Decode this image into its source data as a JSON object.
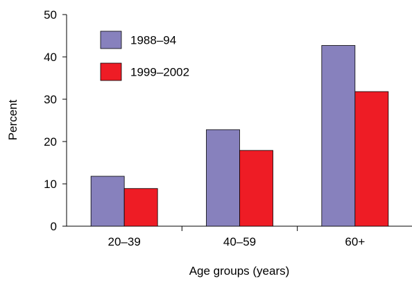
{
  "chart_data": {
    "type": "bar",
    "title": "",
    "xlabel": "Age groups (years)",
    "ylabel": "Percent",
    "categories": [
      "20–39",
      "40–59",
      "60+"
    ],
    "series": [
      {
        "name": "1988–94",
        "values": [
          11.8,
          22.8,
          42.7
        ],
        "color": "#8781BD"
      },
      {
        "name": "1999–2002",
        "values": [
          8.9,
          17.9,
          31.8
        ],
        "color": "#EE1C25"
      }
    ],
    "ylim": [
      0,
      50
    ],
    "yticks": [
      0,
      10,
      20,
      30,
      40,
      50
    ],
    "grid": false,
    "legend_position": "top-left"
  }
}
